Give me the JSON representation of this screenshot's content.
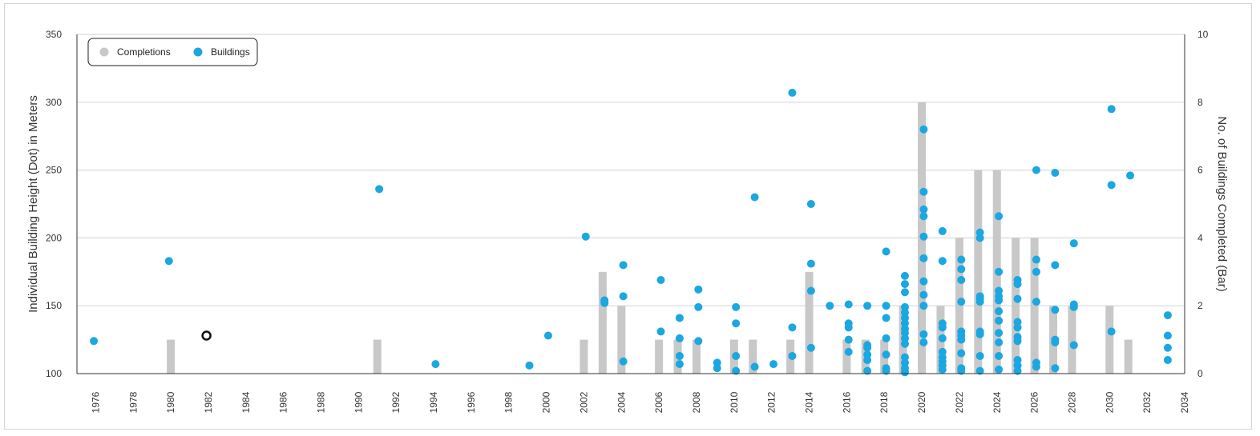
{
  "chart_data": {
    "type": "bar+scatter",
    "legend": {
      "placement": "top-left",
      "entries": [
        {
          "label": "Completions",
          "color": "#c8c8c8"
        },
        {
          "label": "Buildings",
          "color": "#1ba7e1"
        }
      ]
    },
    "ylabel_left": "Individual Building Height (Dot) in Meters",
    "ylabel_right": "No. of Buildings Completed (Bar)",
    "xlim": [
      1975,
      2034
    ],
    "ylim_left": [
      100,
      350
    ],
    "ylim_right": [
      0,
      10
    ],
    "x_ticks": [
      1976,
      1978,
      1980,
      1982,
      1984,
      1986,
      1988,
      1990,
      1992,
      1994,
      1996,
      1998,
      2000,
      2002,
      2004,
      2006,
      2008,
      2010,
      2012,
      2014,
      2016,
      2018,
      2020,
      2022,
      2024,
      2026,
      2028,
      2030,
      2032,
      2034
    ],
    "y_ticks_left": [
      100,
      150,
      200,
      250,
      300,
      350
    ],
    "y_ticks_right": [
      0,
      2,
      4,
      6,
      8,
      10
    ],
    "grid": true,
    "colors": {
      "bar": "#c8c8c8",
      "dot": "#1ba7e1",
      "grid": "#d9d9d9",
      "axis": "#333333"
    },
    "completions": [
      {
        "year": 1980,
        "count": 1
      },
      {
        "year": 1991,
        "count": 1
      },
      {
        "year": 2002,
        "count": 1
      },
      {
        "year": 2003,
        "count": 3
      },
      {
        "year": 2004,
        "count": 2
      },
      {
        "year": 2006,
        "count": 1
      },
      {
        "year": 2007,
        "count": 1
      },
      {
        "year": 2008,
        "count": 1
      },
      {
        "year": 2010,
        "count": 1
      },
      {
        "year": 2011,
        "count": 1
      },
      {
        "year": 2013,
        "count": 1
      },
      {
        "year": 2014,
        "count": 3
      },
      {
        "year": 2016,
        "count": 1
      },
      {
        "year": 2017,
        "count": 1
      },
      {
        "year": 2018,
        "count": 1
      },
      {
        "year": 2019,
        "count": 2
      },
      {
        "year": 2020,
        "count": 8
      },
      {
        "year": 2021,
        "count": 2
      },
      {
        "year": 2022,
        "count": 4
      },
      {
        "year": 2023,
        "count": 6
      },
      {
        "year": 2024,
        "count": 6
      },
      {
        "year": 2025,
        "count": 4
      },
      {
        "year": 2026,
        "count": 4
      },
      {
        "year": 2027,
        "count": 2
      },
      {
        "year": 2028,
        "count": 2
      },
      {
        "year": 2030,
        "count": 2
      },
      {
        "year": 2031,
        "count": 1
      }
    ],
    "buildings": [
      [
        1975.9,
        124
      ],
      [
        1979.9,
        183
      ],
      [
        1981.9,
        128
      ],
      [
        1991.1,
        236
      ],
      [
        1994.1,
        107
      ],
      [
        1999.1,
        106
      ],
      [
        2000.1,
        128
      ],
      [
        2002.1,
        201
      ],
      [
        2003.1,
        154
      ],
      [
        2003.1,
        152
      ],
      [
        2004.1,
        180
      ],
      [
        2004.1,
        157
      ],
      [
        2004.1,
        109
      ],
      [
        2006.1,
        169
      ],
      [
        2006.1,
        131
      ],
      [
        2007.1,
        141
      ],
      [
        2007.1,
        126
      ],
      [
        2007.1,
        113
      ],
      [
        2007.1,
        107
      ],
      [
        2008.1,
        162
      ],
      [
        2008.1,
        149
      ],
      [
        2008.1,
        124
      ],
      [
        2009.1,
        108
      ],
      [
        2009.1,
        104
      ],
      [
        2010.1,
        149
      ],
      [
        2010.1,
        137
      ],
      [
        2010.1,
        113
      ],
      [
        2010.1,
        102
      ],
      [
        2011.1,
        230
      ],
      [
        2011.1,
        105
      ],
      [
        2012.1,
        107
      ],
      [
        2013.1,
        307
      ],
      [
        2013.1,
        134
      ],
      [
        2013.1,
        113
      ],
      [
        2014.1,
        225
      ],
      [
        2014.1,
        181
      ],
      [
        2014.1,
        161
      ],
      [
        2014.1,
        119
      ],
      [
        2015.1,
        150
      ],
      [
        2016.1,
        151
      ],
      [
        2016.1,
        137
      ],
      [
        2016.1,
        134
      ],
      [
        2016.1,
        125
      ],
      [
        2016.1,
        116
      ],
      [
        2017.1,
        150
      ],
      [
        2017.1,
        121
      ],
      [
        2017.1,
        119
      ],
      [
        2017.1,
        114
      ],
      [
        2017.1,
        110
      ],
      [
        2017.1,
        102
      ],
      [
        2018.1,
        190
      ],
      [
        2018.1,
        150
      ],
      [
        2018.1,
        141
      ],
      [
        2018.1,
        126
      ],
      [
        2018.1,
        114
      ],
      [
        2018.1,
        104
      ],
      [
        2018.1,
        102
      ],
      [
        2019.1,
        172
      ],
      [
        2019.1,
        166
      ],
      [
        2019.1,
        160
      ],
      [
        2019.1,
        149
      ],
      [
        2019.1,
        145
      ],
      [
        2019.1,
        141
      ],
      [
        2019.1,
        137
      ],
      [
        2019.1,
        133
      ],
      [
        2019.1,
        130
      ],
      [
        2019.1,
        126
      ],
      [
        2019.1,
        122
      ],
      [
        2019.1,
        112
      ],
      [
        2019.1,
        108
      ],
      [
        2019.1,
        104
      ],
      [
        2019.1,
        101
      ],
      [
        2020.1,
        280
      ],
      [
        2020.1,
        234
      ],
      [
        2020.1,
        221
      ],
      [
        2020.1,
        216
      ],
      [
        2020.1,
        201
      ],
      [
        2020.1,
        185
      ],
      [
        2020.1,
        168
      ],
      [
        2020.1,
        158
      ],
      [
        2020.1,
        150
      ],
      [
        2020.1,
        129
      ],
      [
        2020.1,
        123
      ],
      [
        2021.1,
        205
      ],
      [
        2021.1,
        183
      ],
      [
        2021.1,
        137
      ],
      [
        2021.1,
        134
      ],
      [
        2021.1,
        126
      ],
      [
        2021.1,
        116
      ],
      [
        2021.1,
        112
      ],
      [
        2021.1,
        109
      ],
      [
        2021.1,
        106
      ],
      [
        2021.1,
        103
      ],
      [
        2022.1,
        184
      ],
      [
        2022.1,
        177
      ],
      [
        2022.1,
        169
      ],
      [
        2022.1,
        153
      ],
      [
        2022.1,
        131
      ],
      [
        2022.1,
        128
      ],
      [
        2022.1,
        125
      ],
      [
        2022.1,
        115
      ],
      [
        2022.1,
        104
      ],
      [
        2022.1,
        102
      ],
      [
        2023.1,
        204
      ],
      [
        2023.1,
        200
      ],
      [
        2023.1,
        157
      ],
      [
        2023.1,
        155
      ],
      [
        2023.1,
        153
      ],
      [
        2023.1,
        131
      ],
      [
        2023.1,
        129
      ],
      [
        2023.1,
        113
      ],
      [
        2023.1,
        102
      ],
      [
        2024.1,
        216
      ],
      [
        2024.1,
        175
      ],
      [
        2024.1,
        161
      ],
      [
        2024.1,
        157
      ],
      [
        2024.1,
        154
      ],
      [
        2024.1,
        146
      ],
      [
        2024.1,
        139
      ],
      [
        2024.1,
        130
      ],
      [
        2024.1,
        123
      ],
      [
        2024.1,
        113
      ],
      [
        2024.1,
        103
      ],
      [
        2025.1,
        169
      ],
      [
        2025.1,
        166
      ],
      [
        2025.1,
        155
      ],
      [
        2025.1,
        138
      ],
      [
        2025.1,
        134
      ],
      [
        2025.1,
        127
      ],
      [
        2025.1,
        124
      ],
      [
        2025.1,
        110
      ],
      [
        2025.1,
        106
      ],
      [
        2025.1,
        102
      ],
      [
        2026.1,
        250
      ],
      [
        2026.1,
        184
      ],
      [
        2026.1,
        175
      ],
      [
        2026.1,
        153
      ],
      [
        2026.1,
        108
      ],
      [
        2026.1,
        105
      ],
      [
        2027.1,
        248
      ],
      [
        2027.1,
        180
      ],
      [
        2027.1,
        147
      ],
      [
        2027.1,
        125
      ],
      [
        2027.1,
        123
      ],
      [
        2027.1,
        104
      ],
      [
        2028.1,
        196
      ],
      [
        2028.1,
        151
      ],
      [
        2028.1,
        149
      ],
      [
        2028.1,
        121
      ],
      [
        2030.1,
        295
      ],
      [
        2030.1,
        239
      ],
      [
        2030.1,
        131
      ],
      [
        2031.1,
        246
      ],
      [
        2033.1,
        143
      ],
      [
        2033.1,
        128
      ],
      [
        2033.1,
        119
      ],
      [
        2033.1,
        110
      ]
    ]
  }
}
